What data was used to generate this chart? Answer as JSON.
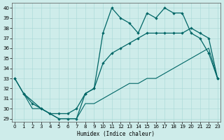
{
  "xlabel": "Humidex (Indice chaleur)",
  "bg_color": "#ceecea",
  "line_color": "#006666",
  "curve1_x": [
    0,
    1,
    3,
    4,
    5,
    6,
    7,
    8,
    9,
    10,
    11,
    12,
    13,
    14,
    15,
    16,
    17,
    18,
    19,
    20,
    21,
    22,
    23
  ],
  "curve1_y": [
    33,
    31.5,
    30,
    29.5,
    29,
    29,
    29,
    31.5,
    32,
    37.5,
    40,
    39,
    38.5,
    37.5,
    39.5,
    39,
    40,
    39.5,
    39.5,
    37.5,
    37,
    35.5,
    33
  ],
  "curve2_x": [
    0,
    1,
    2,
    3,
    4,
    5,
    6,
    7,
    8,
    9,
    10,
    11,
    12,
    13,
    14,
    15,
    16,
    17,
    18,
    19,
    20,
    21,
    22,
    23
  ],
  "curve2_y": [
    33,
    31.5,
    30.5,
    30,
    29.5,
    29.5,
    29.5,
    30.0,
    31.5,
    32.0,
    34.5,
    35.5,
    36.0,
    36.5,
    37.0,
    37.5,
    37.5,
    37.5,
    37.5,
    37.5,
    38.0,
    37.5,
    37.0,
    33
  ],
  "curve3_x": [
    1,
    2,
    3,
    4,
    5,
    6,
    7,
    8,
    9,
    10,
    11,
    12,
    13,
    14,
    15,
    16,
    17,
    18,
    19,
    20,
    21,
    22,
    23
  ],
  "curve3_y": [
    31.5,
    30.0,
    30.0,
    29.5,
    29.0,
    29.0,
    29.0,
    30.5,
    30.5,
    31.0,
    31.5,
    32.0,
    32.5,
    32.5,
    33.0,
    33.0,
    33.5,
    34.0,
    34.5,
    35.0,
    35.5,
    36.0,
    33.0
  ],
  "yticks": [
    29,
    30,
    31,
    32,
    33,
    34,
    35,
    36,
    37,
    38,
    39,
    40
  ],
  "xticks": [
    0,
    1,
    2,
    3,
    4,
    5,
    6,
    7,
    8,
    9,
    10,
    11,
    12,
    13,
    14,
    15,
    16,
    17,
    18,
    19,
    20,
    21,
    22,
    23
  ],
  "xlim": [
    -0.3,
    23.3
  ],
  "ylim": [
    28.7,
    40.5
  ]
}
